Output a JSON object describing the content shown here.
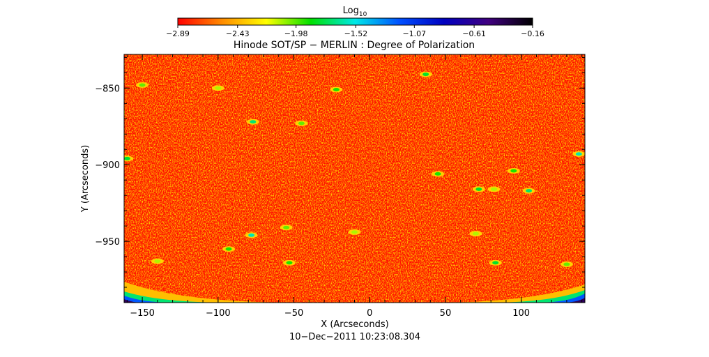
{
  "chart_data": {
    "type": "heatmap",
    "title": "Hinode SOT/SP − MERLIN : Degree of Polarization",
    "xlabel": "X (Arcseconds)",
    "ylabel": "Y (Arcseconds)",
    "timestamp": "10−Dec−2011 10:23:08.304",
    "xlim": [
      -162,
      142
    ],
    "ylim": [
      -990,
      -828
    ],
    "x_ticks": [
      -150,
      -100,
      -50,
      0,
      50,
      100
    ],
    "x_tick_labels": [
      "−150",
      "−100",
      "−50",
      "0",
      "50",
      "100"
    ],
    "y_ticks": [
      -850,
      -900,
      -950
    ],
    "y_tick_labels": [
      "−850",
      "−900",
      "−950"
    ],
    "colorbar": {
      "label_base": "Log",
      "label_sub": "10",
      "range": [
        -2.89,
        -0.16
      ],
      "tick_values": [
        -2.89,
        -2.43,
        -1.98,
        -1.52,
        -1.07,
        -0.61,
        -0.16
      ],
      "tick_labels": [
        "−2.89",
        "−2.43",
        "−1.98",
        "−1.52",
        "−1.07",
        "−0.61",
        "−0.16"
      ],
      "colors": [
        "#ff0000",
        "#ff8c00",
        "#ffff00",
        "#00e000",
        "#00e8e8",
        "#0050ff",
        "#0000c0",
        "#400080",
        "#000000"
      ]
    },
    "background_level": -2.85,
    "speckle_level": -2.3,
    "features": [
      {
        "x": -150,
        "y": -848,
        "value": -2.0
      },
      {
        "x": -100,
        "y": -850,
        "value": -2.1
      },
      {
        "x": -77,
        "y": -872,
        "value": -1.7
      },
      {
        "x": -45,
        "y": -873,
        "value": -2.0
      },
      {
        "x": -22,
        "y": -851,
        "value": -1.9
      },
      {
        "x": 37,
        "y": -841,
        "value": -1.8
      },
      {
        "x": 45,
        "y": -906,
        "value": -1.9
      },
      {
        "x": 82,
        "y": -916,
        "value": -2.1
      },
      {
        "x": 95,
        "y": -904,
        "value": -1.9
      },
      {
        "x": 72,
        "y": -916,
        "value": -1.8
      },
      {
        "x": 105,
        "y": -917,
        "value": -1.7
      },
      {
        "x": 138,
        "y": -893,
        "value": -1.6
      },
      {
        "x": -160,
        "y": -896,
        "value": -1.8
      },
      {
        "x": -78,
        "y": -946,
        "value": -1.6
      },
      {
        "x": -93,
        "y": -955,
        "value": -1.9
      },
      {
        "x": -55,
        "y": -941,
        "value": -2.0
      },
      {
        "x": -10,
        "y": -944,
        "value": -2.1
      },
      {
        "x": -53,
        "y": -964,
        "value": -1.9
      },
      {
        "x": 83,
        "y": -964,
        "value": -1.8
      },
      {
        "x": -140,
        "y": -963,
        "value": -2.1
      },
      {
        "x": 70,
        "y": -945,
        "value": -2.1
      },
      {
        "x": 130,
        "y": -965,
        "value": -2.0
      }
    ],
    "limb_edge": {
      "level_low": -2.3,
      "level_high": -0.4
    }
  }
}
